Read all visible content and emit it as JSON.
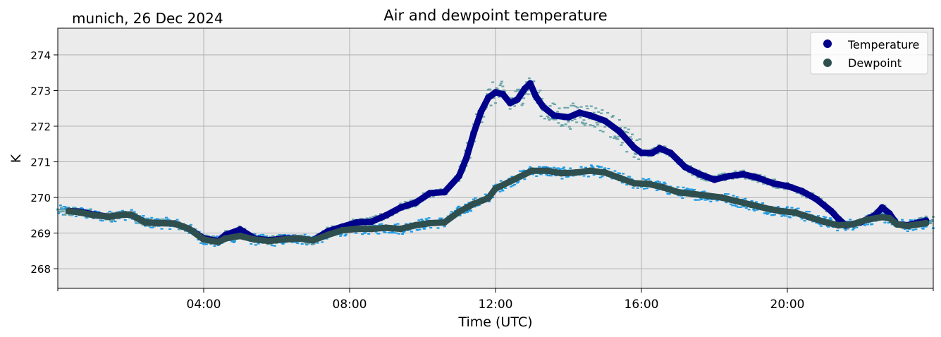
{
  "chart_data": {
    "type": "line",
    "title": "Air and dewpoint temperature",
    "subtitle": "munich, 26 Dec 2024",
    "xlabel": "Time (UTC)",
    "ylabel": "K",
    "x_unit": "hours UTC",
    "xlim": [
      0,
      24
    ],
    "ylim": [
      267.45,
      274.75
    ],
    "x_ticks": [
      {
        "value": 4,
        "label": "04:00"
      },
      {
        "value": 8,
        "label": "08:00"
      },
      {
        "value": 12,
        "label": "12:00"
      },
      {
        "value": 16,
        "label": "16:00"
      },
      {
        "value": 20,
        "label": "20:00"
      }
    ],
    "y_ticks": [
      268,
      269,
      270,
      271,
      272,
      273,
      274
    ],
    "grid": true,
    "legend_position": "top-right",
    "series": [
      {
        "name": "Temperature",
        "style": "thick line of markers",
        "color": "#00008b",
        "raw_color": "#6aa5a8",
        "points": [
          [
            0.3,
            269.62
          ],
          [
            0.6,
            269.6
          ],
          [
            1.0,
            269.52
          ],
          [
            1.4,
            269.46
          ],
          [
            1.8,
            269.52
          ],
          [
            2.0,
            269.52
          ],
          [
            2.4,
            269.3
          ],
          [
            2.8,
            269.28
          ],
          [
            3.2,
            269.27
          ],
          [
            3.6,
            269.12
          ],
          [
            4.0,
            268.85
          ],
          [
            4.4,
            268.78
          ],
          [
            4.6,
            268.95
          ],
          [
            5.0,
            269.1
          ],
          [
            5.4,
            268.85
          ],
          [
            5.8,
            268.8
          ],
          [
            6.2,
            268.85
          ],
          [
            6.6,
            268.85
          ],
          [
            7.0,
            268.8
          ],
          [
            7.4,
            269.05
          ],
          [
            7.8,
            269.18
          ],
          [
            8.2,
            269.3
          ],
          [
            8.6,
            269.32
          ],
          [
            9.0,
            269.5
          ],
          [
            9.4,
            269.72
          ],
          [
            9.8,
            269.85
          ],
          [
            10.2,
            270.12
          ],
          [
            10.6,
            270.15
          ],
          [
            11.0,
            270.6
          ],
          [
            11.2,
            271.1
          ],
          [
            11.4,
            271.8
          ],
          [
            11.6,
            272.4
          ],
          [
            11.8,
            272.8
          ],
          [
            12.0,
            272.95
          ],
          [
            12.2,
            272.9
          ],
          [
            12.4,
            272.65
          ],
          [
            12.6,
            272.75
          ],
          [
            12.8,
            273.05
          ],
          [
            12.95,
            273.2
          ],
          [
            13.1,
            272.85
          ],
          [
            13.3,
            272.55
          ],
          [
            13.6,
            272.3
          ],
          [
            14.0,
            272.25
          ],
          [
            14.3,
            272.38
          ],
          [
            14.6,
            272.3
          ],
          [
            15.0,
            272.15
          ],
          [
            15.4,
            271.85
          ],
          [
            15.8,
            271.4
          ],
          [
            16.0,
            271.25
          ],
          [
            16.3,
            271.25
          ],
          [
            16.5,
            271.38
          ],
          [
            16.8,
            271.25
          ],
          [
            17.2,
            270.85
          ],
          [
            17.6,
            270.65
          ],
          [
            18.0,
            270.5
          ],
          [
            18.4,
            270.6
          ],
          [
            18.8,
            270.65
          ],
          [
            19.2,
            270.55
          ],
          [
            19.6,
            270.4
          ],
          [
            20.0,
            270.32
          ],
          [
            20.4,
            270.18
          ],
          [
            20.8,
            269.95
          ],
          [
            21.2,
            269.62
          ],
          [
            21.4,
            269.4
          ],
          [
            21.6,
            269.22
          ],
          [
            22.0,
            269.3
          ],
          [
            22.4,
            269.5
          ],
          [
            22.6,
            269.72
          ],
          [
            22.8,
            269.55
          ],
          [
            23.0,
            269.25
          ],
          [
            23.3,
            269.22
          ],
          [
            23.6,
            269.3
          ],
          [
            23.8,
            269.35
          ]
        ]
      },
      {
        "name": "Dewpoint",
        "style": "thick line of markers",
        "color": "#2f4f4f",
        "raw_color": "#1e9be6",
        "points": [
          [
            0.3,
            269.62
          ],
          [
            0.6,
            269.58
          ],
          [
            1.0,
            269.5
          ],
          [
            1.4,
            269.46
          ],
          [
            1.8,
            269.52
          ],
          [
            2.0,
            269.52
          ],
          [
            2.4,
            269.3
          ],
          [
            2.8,
            269.28
          ],
          [
            3.2,
            269.27
          ],
          [
            3.6,
            269.12
          ],
          [
            4.0,
            268.82
          ],
          [
            4.4,
            268.75
          ],
          [
            4.6,
            268.85
          ],
          [
            5.0,
            268.92
          ],
          [
            5.4,
            268.82
          ],
          [
            5.8,
            268.78
          ],
          [
            6.2,
            268.82
          ],
          [
            6.6,
            268.85
          ],
          [
            7.0,
            268.8
          ],
          [
            7.4,
            268.95
          ],
          [
            7.8,
            269.08
          ],
          [
            8.2,
            269.12
          ],
          [
            8.6,
            269.12
          ],
          [
            9.0,
            269.15
          ],
          [
            9.4,
            269.12
          ],
          [
            9.8,
            269.22
          ],
          [
            10.2,
            269.28
          ],
          [
            10.6,
            269.3
          ],
          [
            11.0,
            269.6
          ],
          [
            11.4,
            269.82
          ],
          [
            11.8,
            269.98
          ],
          [
            12.0,
            270.25
          ],
          [
            12.4,
            270.45
          ],
          [
            12.8,
            270.65
          ],
          [
            13.0,
            270.75
          ],
          [
            13.4,
            270.75
          ],
          [
            13.8,
            270.68
          ],
          [
            14.2,
            270.7
          ],
          [
            14.6,
            270.75
          ],
          [
            15.0,
            270.7
          ],
          [
            15.4,
            270.55
          ],
          [
            15.8,
            270.4
          ],
          [
            16.2,
            270.38
          ],
          [
            16.6,
            270.28
          ],
          [
            17.0,
            270.15
          ],
          [
            17.4,
            270.1
          ],
          [
            17.8,
            270.05
          ],
          [
            18.2,
            270.0
          ],
          [
            18.6,
            269.9
          ],
          [
            19.0,
            269.8
          ],
          [
            19.4,
            269.7
          ],
          [
            19.8,
            269.62
          ],
          [
            20.2,
            269.58
          ],
          [
            20.6,
            269.45
          ],
          [
            21.0,
            269.32
          ],
          [
            21.4,
            269.22
          ],
          [
            21.8,
            269.25
          ],
          [
            22.2,
            269.38
          ],
          [
            22.6,
            269.45
          ],
          [
            22.8,
            269.42
          ],
          [
            23.0,
            269.25
          ],
          [
            23.3,
            269.2
          ],
          [
            23.6,
            269.25
          ],
          [
            23.8,
            269.28
          ]
        ]
      }
    ]
  }
}
